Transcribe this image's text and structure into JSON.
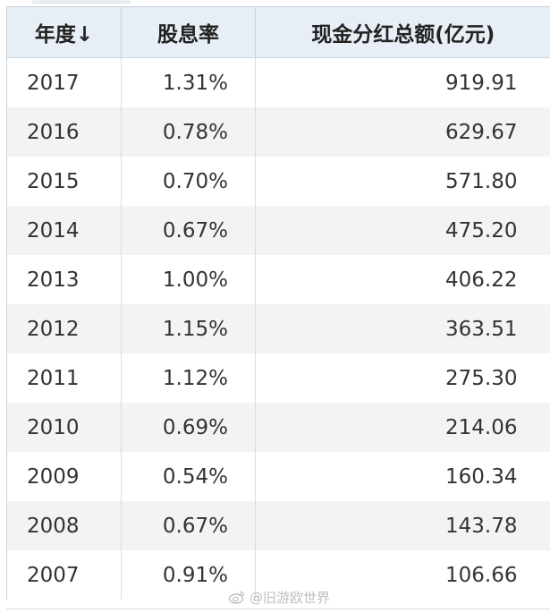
{
  "table": {
    "headers": {
      "year": "年度↓",
      "dividend_yield": "股息率",
      "cash_dividend_total": "现金分红总额(亿元)"
    },
    "rows": [
      {
        "year": "2017",
        "dividend_yield": "1.31%",
        "cash_dividend_total": "919.91"
      },
      {
        "year": "2016",
        "dividend_yield": "0.78%",
        "cash_dividend_total": "629.67"
      },
      {
        "year": "2015",
        "dividend_yield": "0.70%",
        "cash_dividend_total": "571.80"
      },
      {
        "year": "2014",
        "dividend_yield": "0.67%",
        "cash_dividend_total": "475.20"
      },
      {
        "year": "2013",
        "dividend_yield": "1.00%",
        "cash_dividend_total": "406.22"
      },
      {
        "year": "2012",
        "dividend_yield": "1.15%",
        "cash_dividend_total": "363.51"
      },
      {
        "year": "2011",
        "dividend_yield": "1.12%",
        "cash_dividend_total": "275.30"
      },
      {
        "year": "2010",
        "dividend_yield": "0.69%",
        "cash_dividend_total": "214.06"
      },
      {
        "year": "2009",
        "dividend_yield": "0.54%",
        "cash_dividend_total": "160.34"
      },
      {
        "year": "2008",
        "dividend_yield": "0.67%",
        "cash_dividend_total": "143.78"
      },
      {
        "year": "2007",
        "dividend_yield": "0.91%",
        "cash_dividend_total": "106.66"
      }
    ]
  },
  "watermark": {
    "icon": "weibo-icon",
    "text": "@旧游欧世界"
  },
  "colors": {
    "header_bg": "#e7eef6",
    "row_alt_bg": "#f3f3f3",
    "border": "#dcdcdc",
    "text": "#333333"
  }
}
